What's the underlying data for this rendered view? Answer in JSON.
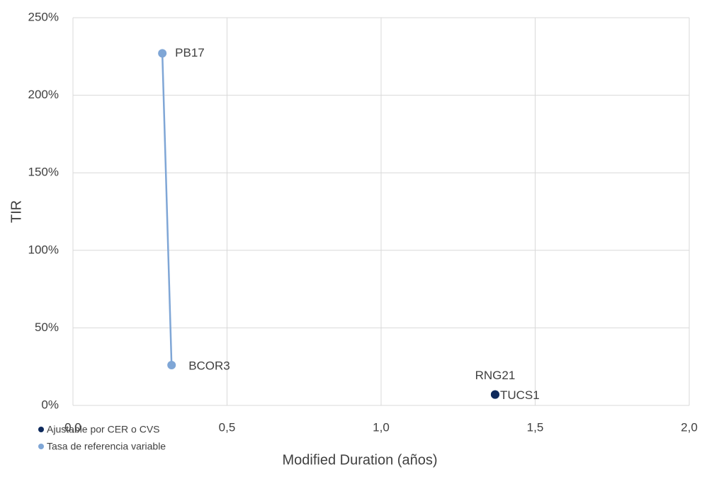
{
  "chart_data": {
    "type": "scatter",
    "x_label": "Modified Duration (años)",
    "y_label": "TIR",
    "xlim": [
      0,
      2
    ],
    "ylim": [
      0,
      250
    ],
    "xticks": [
      {
        "value": 0,
        "label": "0,0"
      },
      {
        "value": 0.5,
        "label": "0,5"
      },
      {
        "value": 1,
        "label": "1,0"
      },
      {
        "value": 1.5,
        "label": "1,5"
      },
      {
        "value": 2,
        "label": "2,0"
      }
    ],
    "yticks": [
      {
        "value": 0,
        "label": "0%"
      },
      {
        "value": 50,
        "label": "50%"
      },
      {
        "value": 100,
        "label": "100%"
      },
      {
        "value": 150,
        "label": "150%"
      },
      {
        "value": 200,
        "label": "200%"
      },
      {
        "value": 250,
        "label": "250%"
      }
    ],
    "grid": true,
    "series": [
      {
        "name": "Ajustable por CER o CVS",
        "color": "#0e2a5c",
        "x": [
          1.37,
          1.37
        ],
        "values": [
          7,
          7
        ],
        "point_labels": [
          "RNG21",
          "TUCS1"
        ],
        "connected": false
      },
      {
        "name": "Tasa de referencia variable",
        "color": "#7fa6d6",
        "x": [
          0.29,
          0.32
        ],
        "values": [
          227,
          26
        ],
        "point_labels": [
          "PB17",
          "BCOR3"
        ],
        "connected": true
      }
    ]
  }
}
